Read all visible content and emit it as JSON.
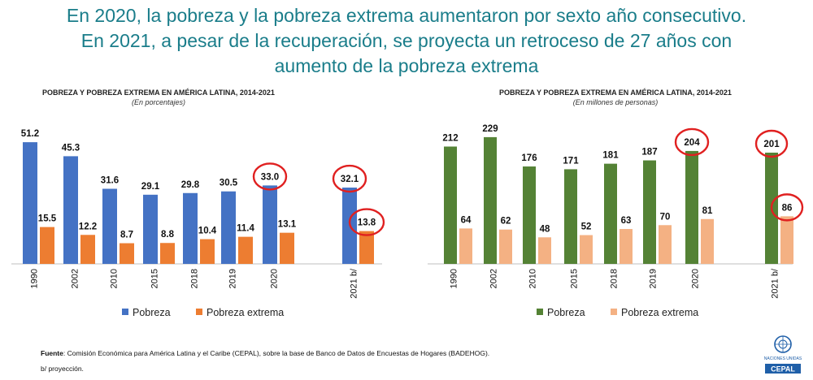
{
  "headline": {
    "line1": "En 2020, la pobreza y la pobreza extrema aumentaron por sexto año consecutivo.",
    "line2": "En 2021, a pesar de la recuperación, se proyecta un retroceso de 27 años con",
    "line3": "aumento de la pobreza extrema"
  },
  "chart_data": [
    {
      "type": "bar",
      "title": "POBREZA Y POBREZA EXTREMA EN AMÉRICA LATINA, 2014-2021",
      "subtitle": "(En porcentajes)",
      "categories": [
        "1990",
        "2002",
        "2010",
        "2015",
        "2018",
        "2019",
        "2020",
        "2021 b/"
      ],
      "series": [
        {
          "name": "Pobreza",
          "color": "#4472c4",
          "values": [
            51.2,
            45.3,
            31.6,
            29.1,
            29.8,
            30.5,
            33.0,
            32.1
          ],
          "labels": [
            "51.2",
            "45.3",
            "31.6",
            "29.1",
            "29.8",
            "30.5",
            "33.0",
            "32.1"
          ]
        },
        {
          "name": "Pobreza extrema",
          "color": "#ed7d31",
          "values": [
            15.5,
            12.2,
            8.7,
            8.8,
            10.4,
            11.4,
            13.1,
            13.8
          ],
          "labels": [
            "15.5",
            "12.2",
            "8.7",
            "8.8",
            "10.4",
            "11.4",
            "13.1",
            "13.8"
          ]
        }
      ],
      "highlighted": [
        {
          "series": 0,
          "index": 6
        },
        {
          "series": 0,
          "index": 7
        },
        {
          "series": 1,
          "index": 7
        }
      ],
      "ylim": [
        0,
        55
      ],
      "legend": "bottom"
    },
    {
      "type": "bar",
      "title": "POBREZA Y POBREZA EXTREMA EN AMÉRICA LATINA, 2014-2021",
      "subtitle": "(En millones de personas)",
      "categories": [
        "1990",
        "2002",
        "2010",
        "2015",
        "2018",
        "2019",
        "2020",
        "2021 b/"
      ],
      "series": [
        {
          "name": "Pobreza",
          "color": "#548235",
          "values": [
            212,
            229,
            176,
            171,
            181,
            187,
            204,
            201
          ],
          "labels": [
            "212",
            "229",
            "176",
            "171",
            "181",
            "187",
            "204",
            "201"
          ]
        },
        {
          "name": "Pobreza extrema",
          "color": "#f4b183",
          "values": [
            64,
            62,
            48,
            52,
            63,
            70,
            81,
            86
          ],
          "labels": [
            "64",
            "62",
            "48",
            "52",
            "63",
            "70",
            "81",
            "86"
          ]
        }
      ],
      "highlighted": [
        {
          "series": 0,
          "index": 6
        },
        {
          "series": 0,
          "index": 7
        },
        {
          "series": 1,
          "index": 7
        }
      ],
      "ylim": [
        0,
        245
      ],
      "legend": "bottom"
    }
  ],
  "footer": {
    "source_label": "Fuente",
    "source_text": ": Comisión Económica para América Latina y el Caribe (CEPAL), sobre la base de Banco de Datos de Encuestas de Hogares (BADEHOG).",
    "note": "b/ proyección."
  },
  "logo": {
    "text": "CEPAL",
    "subtext": "NACIONES UNIDAS",
    "icon": "un-emblem-icon"
  },
  "colors": {
    "headline": "#1a7d8a",
    "highlight_circle": "#e02020"
  }
}
